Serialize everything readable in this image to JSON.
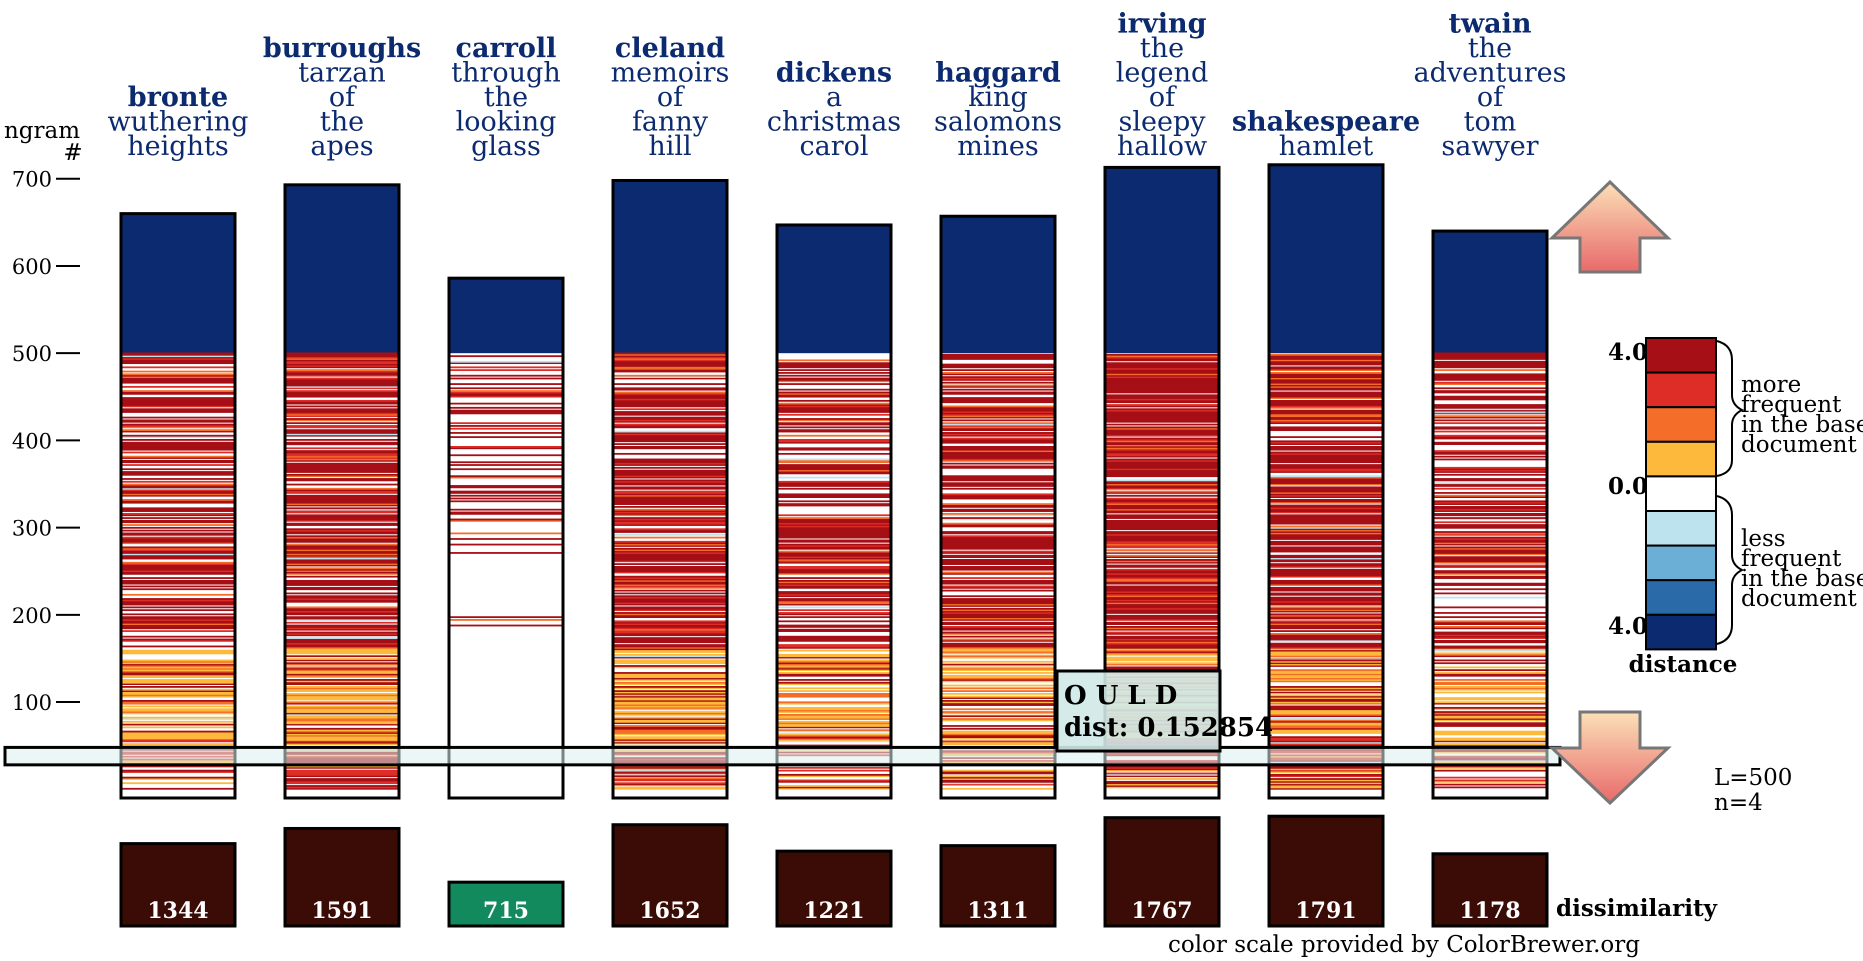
{
  "chart_data": {
    "type": "bar",
    "yaxis": {
      "label_line1": "ngram",
      "label_line2": "#",
      "ticks": [
        100,
        200,
        300,
        400,
        500,
        600,
        700
      ],
      "range": [
        -10,
        720
      ]
    },
    "documents": [
      {
        "author": "bronte",
        "title_lines": [
          "wuthering",
          "heights"
        ],
        "total": 660,
        "dissimilarity": 1344,
        "dissimilarity_label": "1344"
      },
      {
        "author": "burroughs",
        "title_lines": [
          "tarzan",
          "of",
          "the",
          "apes"
        ],
        "total": 693,
        "dissimilarity": 1591,
        "dissimilarity_label": "1591"
      },
      {
        "author": "carroll",
        "title_lines": [
          "through",
          "the",
          "looking",
          "glass"
        ],
        "total": 586,
        "dissimilarity": 715,
        "dissimilarity_label": "715"
      },
      {
        "author": "cleland",
        "title_lines": [
          "memoirs",
          "of",
          "fanny",
          "hill"
        ],
        "total": 698,
        "dissimilarity": 1652,
        "dissimilarity_label": "1652"
      },
      {
        "author": "dickens",
        "title_lines": [
          "a",
          "christmas",
          "carol"
        ],
        "total": 647,
        "dissimilarity": 1221,
        "dissimilarity_label": "1221"
      },
      {
        "author": "haggard",
        "title_lines": [
          "king",
          "salomons",
          "mines"
        ],
        "total": 657,
        "dissimilarity": 1311,
        "dissimilarity_label": "1311"
      },
      {
        "author": "irving",
        "title_lines": [
          "the",
          "legend",
          "of",
          "sleepy",
          "hallow"
        ],
        "total": 713,
        "dissimilarity": 1767,
        "dissimilarity_label": "1767"
      },
      {
        "author": "shakespeare",
        "title_lines": [
          "hamlet"
        ],
        "total": 716,
        "dissimilarity": 1791,
        "dissimilarity_label": "1791"
      },
      {
        "author": "twain",
        "title_lines": [
          "the",
          "adventures",
          "of",
          "tom",
          "sawyer"
        ],
        "total": 640,
        "dissimilarity": 1178,
        "dissimilarity_label": "1178"
      }
    ],
    "dissimilarity_label": "dissimilarity",
    "highlight": {
      "ngram": "O U L D",
      "dist_label": "dist: 0.152854",
      "ngram_index": 40
    },
    "params": {
      "L": "L=500",
      "n": "n=4"
    },
    "legend": {
      "top_value": "4.0",
      "mid_value": "0.0",
      "bottom_value": "4.0",
      "more_lines": [
        "more",
        "frequent",
        "in the base",
        "document"
      ],
      "less_lines": [
        "less",
        "frequent",
        "in the base",
        "document"
      ],
      "title": "distance",
      "colors_more": [
        "#a50f15",
        "#de2d26",
        "#f46d29",
        "#fdb93c"
      ],
      "color_zero": "#ffffff",
      "colors_less": [
        "#bde3ef",
        "#6baed6",
        "#2b6aa8",
        "#0b2a6f"
      ]
    },
    "credit": "color scale provided by ColorBrewer.org",
    "colors": {
      "upper": "#0b2a6f",
      "dissimilarity_fill": "#3a0c05",
      "dissimilarity_best": "#138a5e"
    }
  }
}
